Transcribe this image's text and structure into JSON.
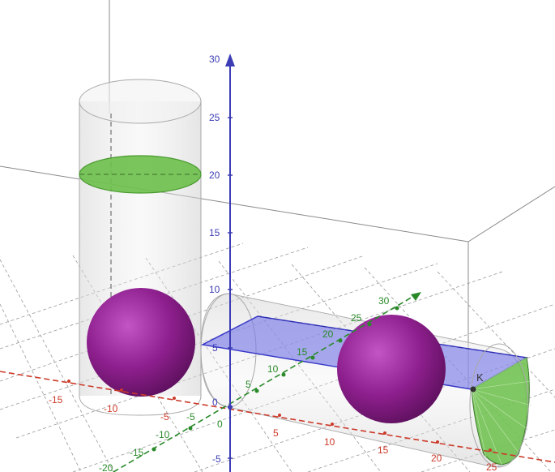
{
  "colors": {
    "x_axis": "#cc3a2a",
    "y_axis": "#2a8a2a",
    "z_axis": "#3d3db5",
    "sphere": "#8e1f8e",
    "water_surface": "#6bbf4a",
    "plane": "#7b7be6",
    "cylinder": "#d8d8d8",
    "grid": "#8a8a8a"
  },
  "axes": {
    "z_ticks": [
      "-5",
      "0",
      "5",
      "10",
      "15",
      "20",
      "25",
      "30"
    ],
    "x_ticks": [
      "-15",
      "-10",
      "-5",
      "5",
      "10",
      "15",
      "20",
      "25"
    ],
    "y_ticks": [
      "-20",
      "-15",
      "-10",
      "-5",
      "0",
      "5",
      "10",
      "15",
      "20",
      "25",
      "30"
    ]
  },
  "points": {
    "k_label": "K"
  }
}
